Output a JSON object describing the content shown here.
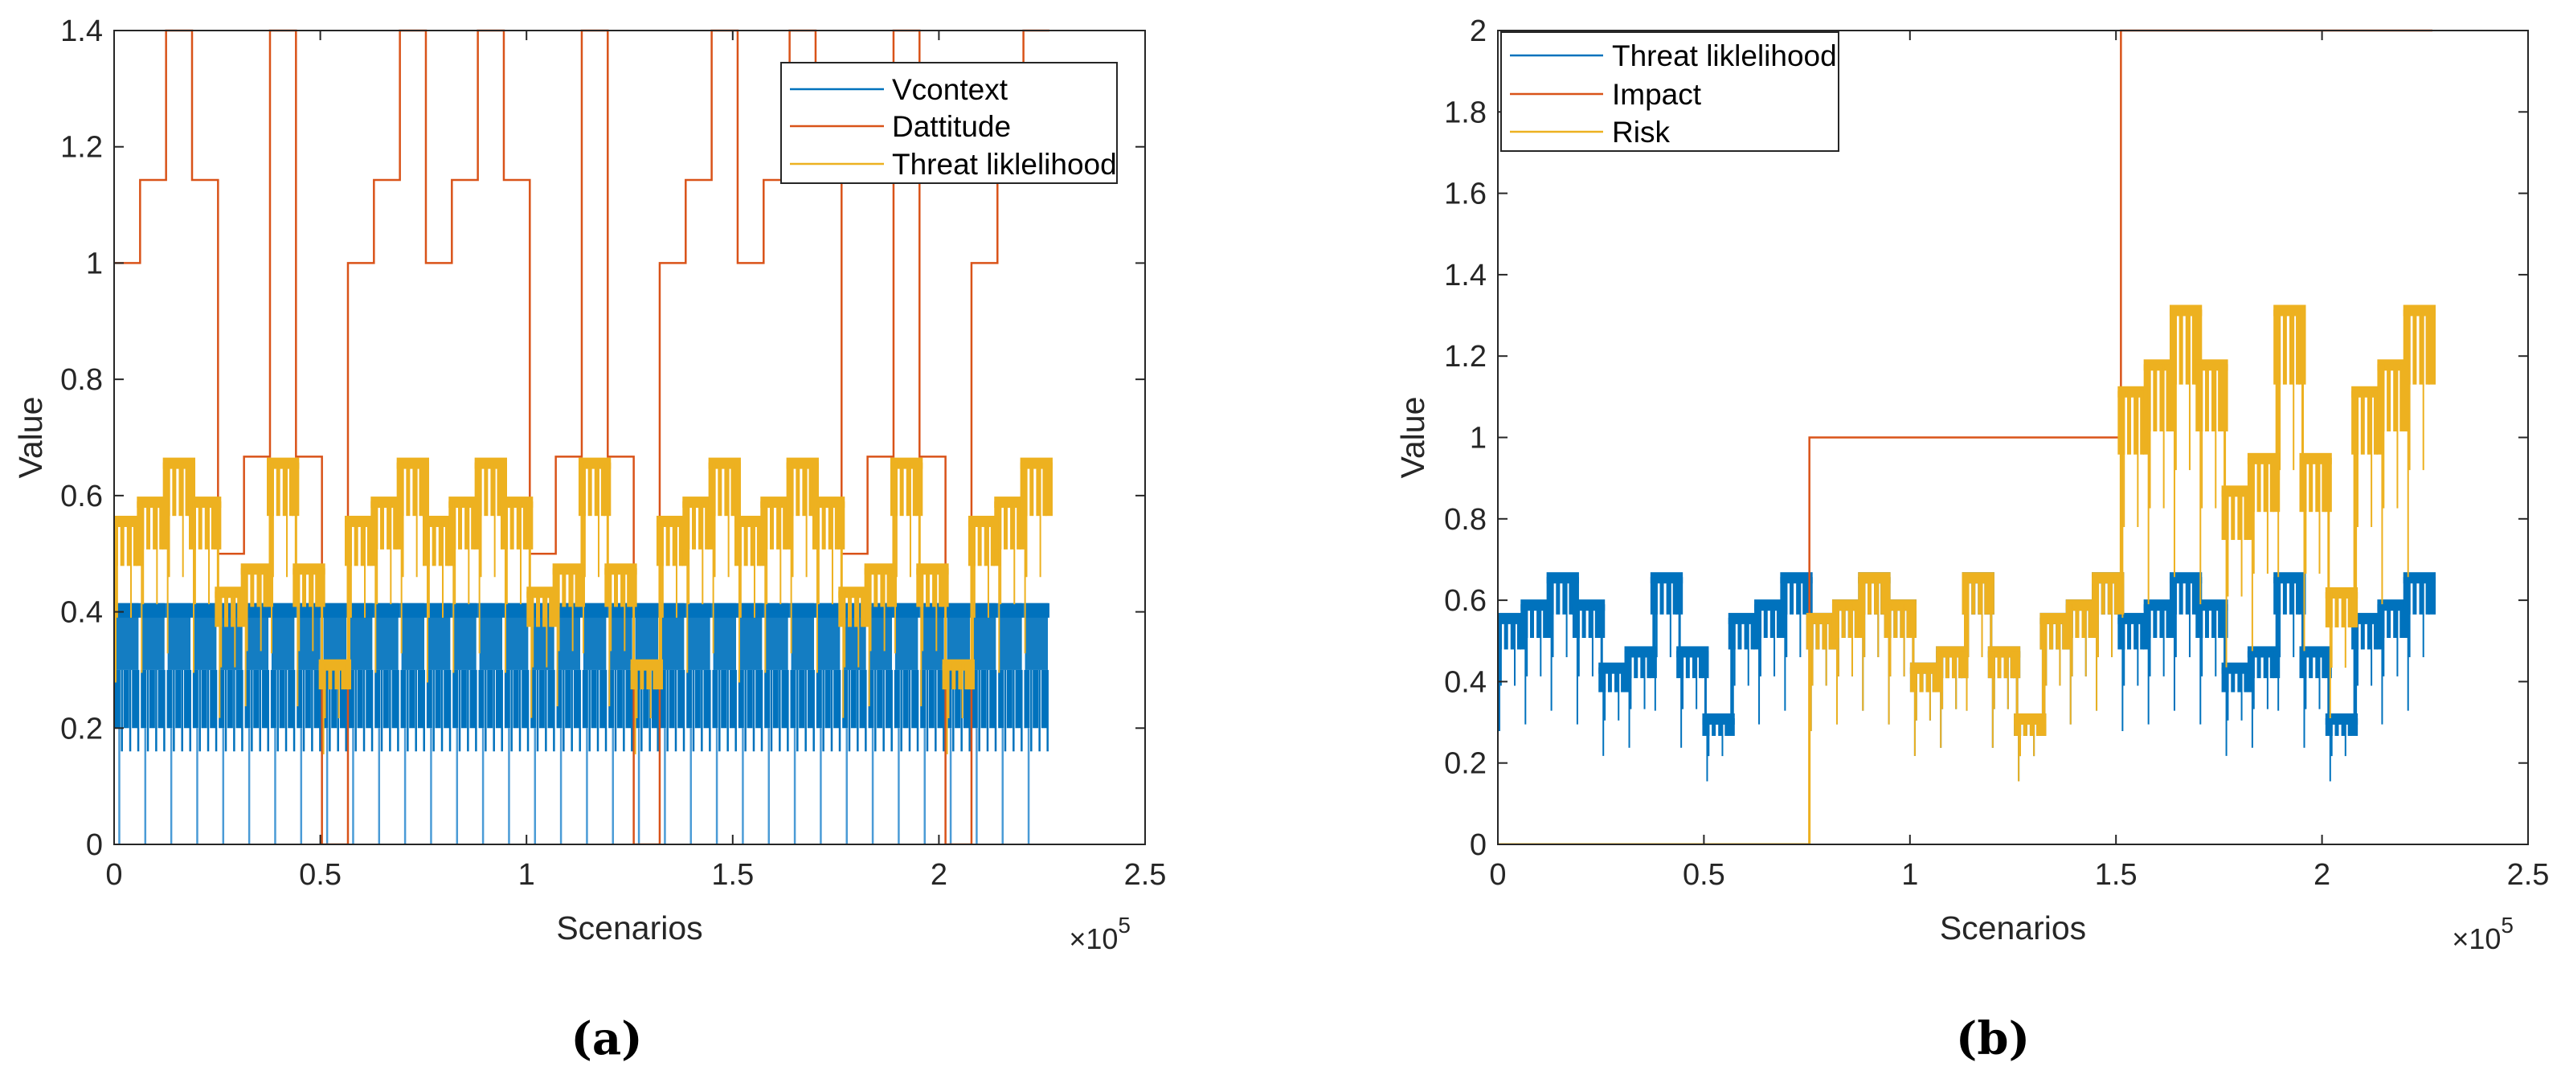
{
  "colors": {
    "blue": "#0072BD",
    "orange": "#D95319",
    "yellow": "#EDB120",
    "axis": "#262626"
  },
  "chart_data": [
    {
      "type": "line",
      "panel_caption": "(a)",
      "title": "",
      "xlabel": "Scenarios",
      "ylabel": "Value",
      "x_multiplier": {
        "base": "×10",
        "exp": "5"
      },
      "xlim": [
        0,
        250000
      ],
      "ylim": [
        0,
        1.4
      ],
      "x_ticks": [
        0,
        50000,
        100000,
        150000,
        200000,
        250000
      ],
      "x_tick_labels": [
        "0",
        "0.5",
        "1",
        "1.5",
        "2",
        "2.5"
      ],
      "y_ticks": [
        0,
        0.2,
        0.4,
        0.6,
        0.8,
        1.0,
        1.2,
        1.4
      ],
      "y_tick_labels": [
        "0",
        "0.2",
        "0.4",
        "0.6",
        "0.8",
        "1",
        "1.2",
        "1.4"
      ],
      "grid": false,
      "legend_position": "top-right",
      "segment_width": 6300,
      "series": [
        {
          "name": "Vcontext",
          "color": "#0072BD",
          "kind": "profile",
          "segments": 36,
          "max": 0.415,
          "band_top_low": 0.39,
          "band_min": 0.3,
          "dip": 0.2,
          "spike": 0.16,
          "floor": 0
        },
        {
          "name": "Dattitude",
          "color": "#D95319",
          "kind": "step",
          "values": [
            1.0,
            1.143,
            1.4,
            1.143,
            0.5,
            0.667,
            1.4,
            0.667,
            0,
            1.0,
            1.143,
            1.4,
            1.0,
            1.143,
            1.4,
            1.143,
            0.5,
            0.667,
            1.4,
            0.667,
            0,
            1.0,
            1.143,
            1.4,
            1.0,
            1.143,
            1.4,
            1.143,
            0.5,
            0.667,
            1.4,
            0.667,
            0,
            1.0,
            1.143,
            1.4
          ]
        },
        {
          "name": "Threat liklelihood",
          "color": "#EDB120",
          "kind": "band",
          "values": [
            0.557,
            0.59,
            0.657,
            0.59,
            0.435,
            0.475,
            0.657,
            0.475,
            0.31,
            0.557,
            0.59,
            0.657,
            0.557,
            0.59,
            0.657,
            0.59,
            0.435,
            0.475,
            0.657,
            0.475,
            0.31,
            0.557,
            0.59,
            0.657,
            0.557,
            0.59,
            0.657,
            0.59,
            0.435,
            0.475,
            0.657,
            0.475,
            0.31,
            0.557,
            0.59,
            0.657
          ]
        }
      ]
    },
    {
      "type": "line",
      "panel_caption": "(b)",
      "title": "",
      "xlabel": "Scenarios",
      "ylabel": "Value",
      "x_multiplier": {
        "base": "×10",
        "exp": "5"
      },
      "xlim": [
        0,
        250000
      ],
      "ylim": [
        0,
        2
      ],
      "x_ticks": [
        0,
        50000,
        100000,
        150000,
        200000,
        250000
      ],
      "x_tick_labels": [
        "0",
        "0.5",
        "1",
        "1.5",
        "2",
        "2.5"
      ],
      "y_ticks": [
        0,
        0.2,
        0.4,
        0.6,
        0.8,
        1.0,
        1.2,
        1.4,
        1.6,
        1.8,
        2.0
      ],
      "y_tick_labels": [
        "0",
        "0.2",
        "0.4",
        "0.6",
        "0.8",
        "1",
        "1.2",
        "1.4",
        "1.6",
        "1.8",
        "2"
      ],
      "grid": false,
      "legend_position": "top-left",
      "segment_width": 6300,
      "series": [
        {
          "name": "Threat liklelihood",
          "color": "#0072BD",
          "kind": "band",
          "values": [
            0.557,
            0.59,
            0.657,
            0.59,
            0.435,
            0.475,
            0.657,
            0.475,
            0.31,
            0.557,
            0.59,
            0.657,
            0.557,
            0.59,
            0.657,
            0.59,
            0.435,
            0.475,
            0.657,
            0.475,
            0.31,
            0.557,
            0.59,
            0.657,
            0.557,
            0.59,
            0.657,
            0.59,
            0.435,
            0.475,
            0.657,
            0.475,
            0.31,
            0.557,
            0.59,
            0.657
          ]
        },
        {
          "name": "Impact",
          "color": "#D95319",
          "kind": "step",
          "values": [
            0,
            0,
            0,
            0,
            0,
            0,
            0,
            0,
            0,
            0,
            0,
            0,
            1,
            1,
            1,
            1,
            1,
            1,
            1,
            1,
            1,
            1,
            1,
            1,
            2,
            2,
            2,
            2,
            2,
            2,
            2,
            2,
            2,
            2,
            2,
            2
          ]
        },
        {
          "name": "Risk",
          "color": "#EDB120",
          "kind": "band",
          "values": [
            0,
            0,
            0,
            0,
            0,
            0,
            0,
            0,
            0,
            0,
            0,
            0,
            0.557,
            0.59,
            0.657,
            0.59,
            0.435,
            0.475,
            0.657,
            0.475,
            0.31,
            0.557,
            0.59,
            0.657,
            1.114,
            1.18,
            1.314,
            1.18,
            0.87,
            0.95,
            1.314,
            0.95,
            0.62,
            1.114,
            1.18,
            1.314
          ]
        }
      ]
    }
  ]
}
